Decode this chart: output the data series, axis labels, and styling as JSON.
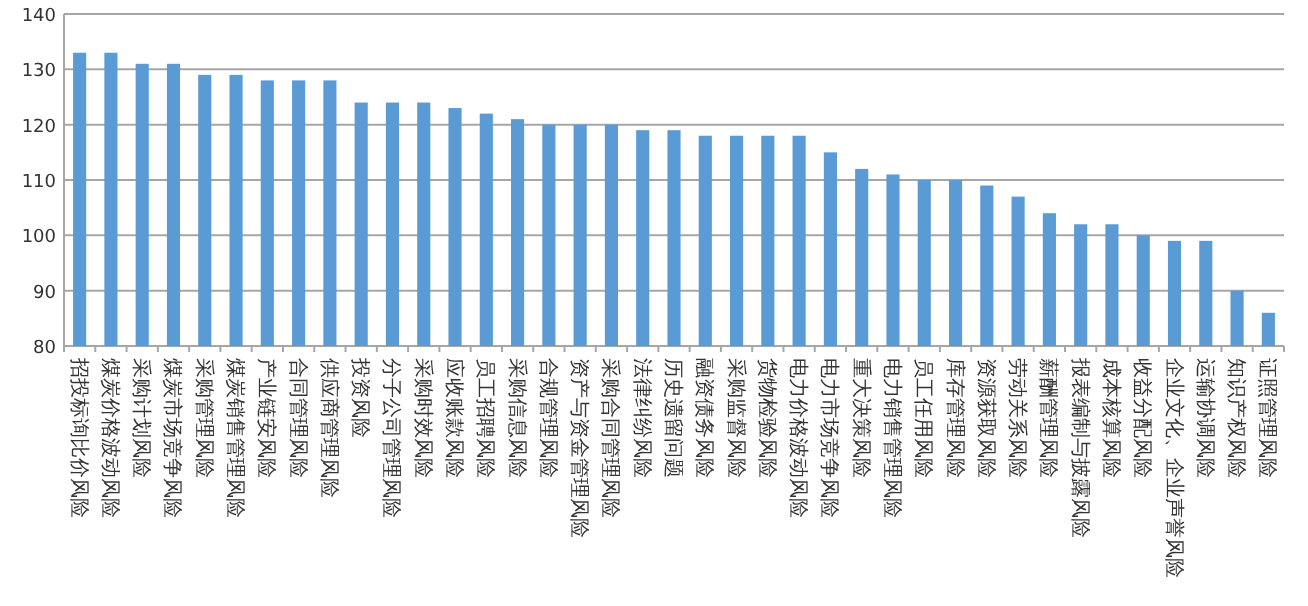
{
  "chart_data": {
    "type": "bar",
    "categories": [
      "招投标询比价风险",
      "煤炭价格波动风险",
      "采购计划风险",
      "煤炭市场竞争风险",
      "采购管理风险",
      "煤炭销售管理风险",
      "产业链安风险",
      "合同管理风险",
      "供应商管理风险",
      "投资风险",
      "分子公司管理风险",
      "采购时效风险",
      "应收账款风险",
      "员工招聘风险",
      "采购信息风险",
      "合规管理风险",
      "资产与资金管理风险",
      "采购合同管理风险",
      "法律纠纷风险",
      "历史遗留问题",
      "融资债务风险",
      "采购监督风险",
      "货物检验风险",
      "电力价格波动风险",
      "电力市场竞争风险",
      "重大决策风险",
      "电力销售管理风险",
      "员工任用风险",
      "库存管理风险",
      "资源获取风险",
      "劳动关系风险",
      "薪酬管理风险",
      "报表编制与披露风险",
      "成本核算风险",
      "收益分配风险",
      "企业文化、企业声誉风险",
      "运输协调风险",
      "知识产权风险",
      "证照管理风险"
    ],
    "values": [
      133,
      133,
      131,
      131,
      129,
      129,
      128,
      128,
      128,
      124,
      124,
      124,
      123,
      122,
      121,
      120,
      120,
      120,
      119,
      119,
      118,
      118,
      118,
      118,
      115,
      112,
      111,
      110,
      110,
      109,
      107,
      104,
      102,
      102,
      100,
      99,
      99,
      90,
      86
    ],
    "color": "#5b9bd5",
    "ylim": [
      80,
      140
    ],
    "yticks": [
      80,
      90,
      100,
      110,
      120,
      130,
      140
    ],
    "grid": "y"
  }
}
